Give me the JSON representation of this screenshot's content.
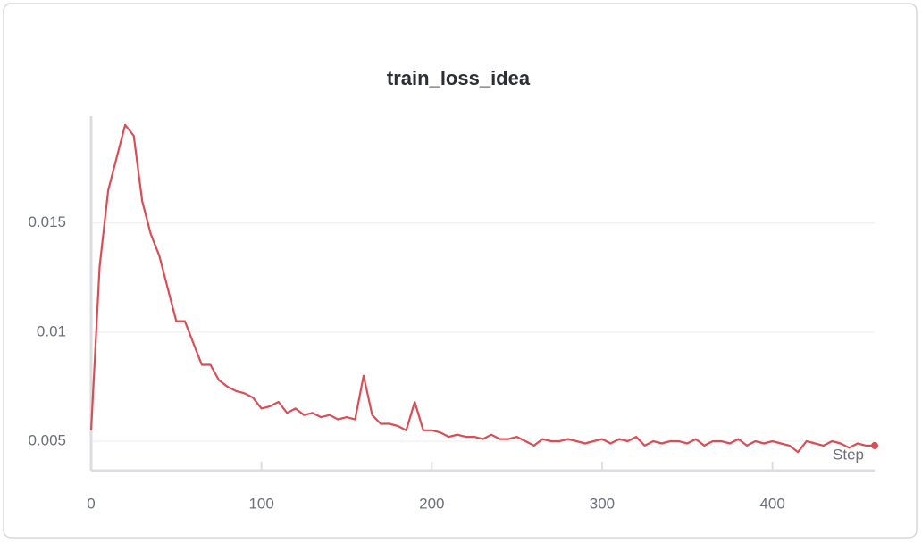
{
  "chart_data": {
    "type": "line",
    "title": "train_loss_idea",
    "x_label": "Step",
    "x": [
      0,
      5,
      10,
      15,
      20,
      25,
      30,
      35,
      40,
      45,
      50,
      55,
      60,
      65,
      70,
      75,
      80,
      85,
      90,
      95,
      100,
      105,
      110,
      115,
      120,
      125,
      130,
      135,
      140,
      145,
      150,
      155,
      160,
      165,
      170,
      175,
      180,
      185,
      190,
      195,
      200,
      205,
      210,
      215,
      220,
      225,
      230,
      235,
      240,
      245,
      250,
      255,
      260,
      265,
      270,
      275,
      280,
      285,
      290,
      295,
      300,
      305,
      310,
      315,
      320,
      325,
      330,
      335,
      340,
      345,
      350,
      355,
      360,
      365,
      370,
      375,
      380,
      385,
      390,
      395,
      400,
      405,
      410,
      415,
      420,
      425,
      430,
      435,
      440,
      445,
      450,
      455,
      460
    ],
    "series": [
      {
        "name": "train_loss_idea",
        "color": "#dc4c55",
        "values": [
          0.0055,
          0.013,
          0.0165,
          0.018,
          0.0195,
          0.019,
          0.016,
          0.0145,
          0.0135,
          0.012,
          0.0105,
          0.0105,
          0.0095,
          0.0085,
          0.0085,
          0.0078,
          0.0075,
          0.0073,
          0.0072,
          0.007,
          0.0065,
          0.0066,
          0.0068,
          0.0063,
          0.0065,
          0.0062,
          0.0063,
          0.0061,
          0.0062,
          0.006,
          0.0061,
          0.006,
          0.008,
          0.0062,
          0.0058,
          0.0058,
          0.0057,
          0.0055,
          0.0068,
          0.0055,
          0.0055,
          0.0054,
          0.0052,
          0.0053,
          0.0052,
          0.0052,
          0.0051,
          0.0053,
          0.0051,
          0.0051,
          0.0052,
          0.005,
          0.0048,
          0.0051,
          0.005,
          0.005,
          0.0051,
          0.005,
          0.0049,
          0.005,
          0.0051,
          0.0049,
          0.0051,
          0.005,
          0.0052,
          0.0048,
          0.005,
          0.0049,
          0.005,
          0.005,
          0.0049,
          0.0051,
          0.0048,
          0.005,
          0.005,
          0.0049,
          0.0051,
          0.0048,
          0.005,
          0.0049,
          0.005,
          0.0049,
          0.0048,
          0.0045,
          0.005,
          0.0049,
          0.0048,
          0.005,
          0.0049,
          0.0047,
          0.0049,
          0.0048,
          0.0048
        ]
      }
    ],
    "xlim": [
      0,
      460
    ],
    "xticks": [
      0,
      100,
      200,
      300,
      400
    ],
    "ylim": [
      0.00365,
      0.0199
    ],
    "yticks": [
      0.005,
      0.01,
      0.015
    ],
    "grid": true
  }
}
